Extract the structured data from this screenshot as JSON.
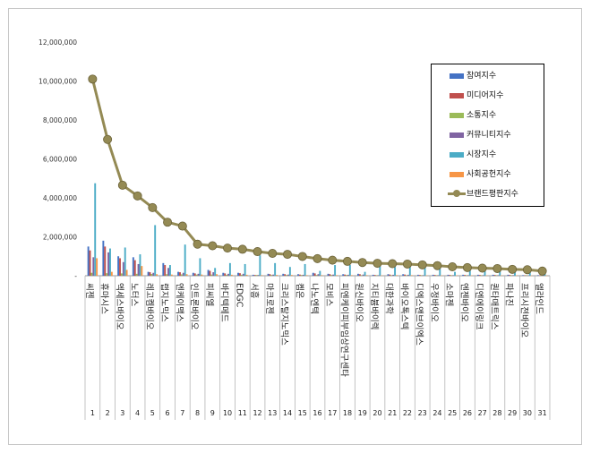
{
  "chart_data": {
    "type": "bar",
    "title": "",
    "xlabel": "",
    "ylabel": "",
    "ylim": [
      0,
      12000000
    ],
    "yticks": [
      0,
      2000000,
      4000000,
      6000000,
      8000000,
      10000000,
      12000000
    ],
    "ytick_labels": [
      "-",
      "2,000,000",
      "4,000,000",
      "6,000,000",
      "8,000,000",
      "10,000,000",
      "12,000,000"
    ],
    "grid": false,
    "legend_position": "top-right",
    "categories": [
      "씨젠",
      "휴마시스",
      "엑세스바이오",
      "노터스",
      "레고켐바이오",
      "랩지노믹스",
      "엔케이맥스",
      "인트론바이오",
      "피씨엘",
      "바디텍메드",
      "EDGC",
      "서흥",
      "마크로젠",
      "크리스탈지노믹스",
      "켐온",
      "나노엔텍",
      "모비스",
      "피엔케이피부임상연구센타",
      "원신바이오",
      "지티븀바이렉",
      "대한과학",
      "바이오톡스텍",
      "디엑스앤브이엑스",
      "우정바이오",
      "소마젠",
      "엔젠바이오",
      "디엔에이링크",
      "퀀타매트릭스",
      "파나진",
      "프리시젼바이오",
      "엘라인드"
    ],
    "ranks": [
      "1",
      "2",
      "3",
      "4",
      "5",
      "6",
      "7",
      "8",
      "9",
      "10",
      "11",
      "12",
      "13",
      "14",
      "15",
      "16",
      "17",
      "18",
      "19",
      "20",
      "21",
      "22",
      "23",
      "24",
      "25",
      "26",
      "27",
      "28",
      "29",
      "30",
      "31"
    ],
    "series": [
      {
        "name": "참여지수",
        "color": "#4472c4",
        "kind": "bar",
        "values": [
          1500000,
          1800000,
          1000000,
          950000,
          200000,
          650000,
          200000,
          150000,
          300000,
          150000,
          150000,
          50000,
          100000,
          100000,
          80000,
          150000,
          100000,
          80000,
          100000,
          50000,
          80000,
          80000,
          50000,
          50000,
          50000,
          50000,
          50000,
          50000,
          50000,
          30000,
          30000
        ]
      },
      {
        "name": "미디어지수",
        "color": "#c0504d",
        "kind": "bar",
        "values": [
          1300000,
          1500000,
          900000,
          800000,
          180000,
          550000,
          180000,
          120000,
          250000,
          120000,
          130000,
          40000,
          80000,
          80000,
          60000,
          120000,
          80000,
          60000,
          80000,
          40000,
          60000,
          60000,
          40000,
          40000,
          40000,
          40000,
          40000,
          40000,
          40000,
          25000,
          25000
        ]
      },
      {
        "name": "소통지수",
        "color": "#9bbb59",
        "kind": "bar",
        "values": [
          150000,
          130000,
          120000,
          100000,
          90000,
          80000,
          70000,
          60000,
          60000,
          50000,
          50000,
          40000,
          40000,
          40000,
          40000,
          40000,
          40000,
          40000,
          30000,
          30000,
          30000,
          30000,
          30000,
          30000,
          30000,
          30000,
          30000,
          30000,
          30000,
          30000,
          30000
        ]
      },
      {
        "name": "커뮤니티지수",
        "color": "#8064a2",
        "kind": "bar",
        "values": [
          950000,
          1200000,
          700000,
          600000,
          150000,
          400000,
          150000,
          100000,
          180000,
          100000,
          100000,
          40000,
          60000,
          60000,
          50000,
          80000,
          60000,
          50000,
          60000,
          30000,
          50000,
          50000,
          30000,
          30000,
          30000,
          30000,
          30000,
          30000,
          30000,
          20000,
          20000
        ]
      },
      {
        "name": "시장지수",
        "color": "#4bacc6",
        "kind": "bar",
        "values": [
          4750000,
          1400000,
          1450000,
          1100000,
          2600000,
          550000,
          1600000,
          900000,
          400000,
          650000,
          600000,
          1050000,
          650000,
          450000,
          600000,
          250000,
          550000,
          550000,
          200000,
          500000,
          450000,
          550000,
          450000,
          350000,
          200000,
          450000,
          300000,
          350000,
          300000,
          250000,
          150000
        ]
      },
      {
        "name": "사회공헌지수",
        "color": "#f79646",
        "kind": "bar",
        "values": [
          900000,
          200000,
          300000,
          500000,
          80000,
          60000,
          80000,
          60000,
          80000,
          50000,
          50000,
          30000,
          40000,
          40000,
          30000,
          30000,
          30000,
          30000,
          30000,
          20000,
          30000,
          30000,
          20000,
          20000,
          20000,
          20000,
          20000,
          20000,
          20000,
          10000,
          10000
        ]
      },
      {
        "name": "브랜드평판지수",
        "color": "#948a54",
        "kind": "line",
        "values": [
          10100000,
          7000000,
          4650000,
          4100000,
          3500000,
          2750000,
          2550000,
          1620000,
          1540000,
          1420000,
          1360000,
          1240000,
          1150000,
          1100000,
          990000,
          880000,
          800000,
          740000,
          680000,
          640000,
          620000,
          600000,
          560000,
          520000,
          460000,
          420000,
          390000,
          370000,
          330000,
          310000,
          240000
        ]
      }
    ]
  }
}
